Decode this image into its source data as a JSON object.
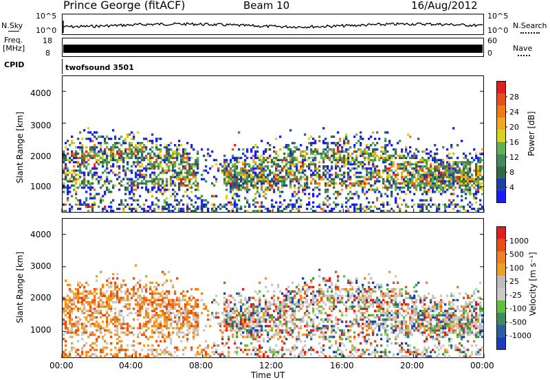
{
  "header": {
    "station": "Prince George (fitACF)",
    "beam": "Beam 10",
    "date": "16/Aug/2012"
  },
  "colors": {
    "power_scale": [
      "#1a1aff",
      "#1f3fa6",
      "#2e6b46",
      "#3e8c5a",
      "#5fb152",
      "#d7d41c",
      "#f2a81a",
      "#f27a14",
      "#e8501a",
      "#e41d1d"
    ],
    "velocity_scale": [
      "#1a3fb8",
      "#2a5fa0",
      "#3e8c5a",
      "#5ec23f",
      "#c9c9c9",
      "#bdbdbd",
      "#f0a020",
      "#f08020",
      "#e85010",
      "#e41d1d"
    ]
  },
  "chart_data": [
    {
      "type": "line",
      "name": "noise-panel",
      "left_label": "N.Sky",
      "right_label": "N.Search",
      "left_ticks": [
        "10^5",
        "10^0"
      ],
      "right_ticks": [
        "10^5",
        "10^0"
      ]
    },
    {
      "type": "line",
      "name": "freq-panel",
      "left_label_1": "Freq.",
      "left_label_2": "[MHz]",
      "right_label": "Nave",
      "left_ticks": [
        "18",
        "8"
      ],
      "right_ticks": [
        "60",
        "0"
      ],
      "cpid_label": "CPID",
      "cpid_value": "twofsound 3501"
    },
    {
      "type": "heatmap",
      "name": "power",
      "ylabel": "Slant Range [km]",
      "ylim": [
        180,
        4500
      ],
      "yticks": [
        1000,
        2000,
        3000,
        4000
      ],
      "colorbar_label": "Power [dB]",
      "colorbar_ticks": [
        "28",
        "24",
        "20",
        "16",
        "12",
        "8",
        "4"
      ]
    },
    {
      "type": "heatmap",
      "name": "velocity",
      "ylabel": "Slant Range [km]",
      "ylim": [
        180,
        4500
      ],
      "yticks": [
        1000,
        2000,
        3000,
        4000
      ],
      "colorbar_label": "Velocity [m s⁻¹]",
      "colorbar_ticks": [
        "1000",
        "500",
        "100",
        "25",
        "-25",
        "-100",
        "-500",
        "-1000"
      ],
      "xticks": [
        "00:00",
        "04:00",
        "08:00",
        "12:00",
        "16:00",
        "20:00",
        "00:00"
      ],
      "xlabel": "Time UT"
    }
  ]
}
